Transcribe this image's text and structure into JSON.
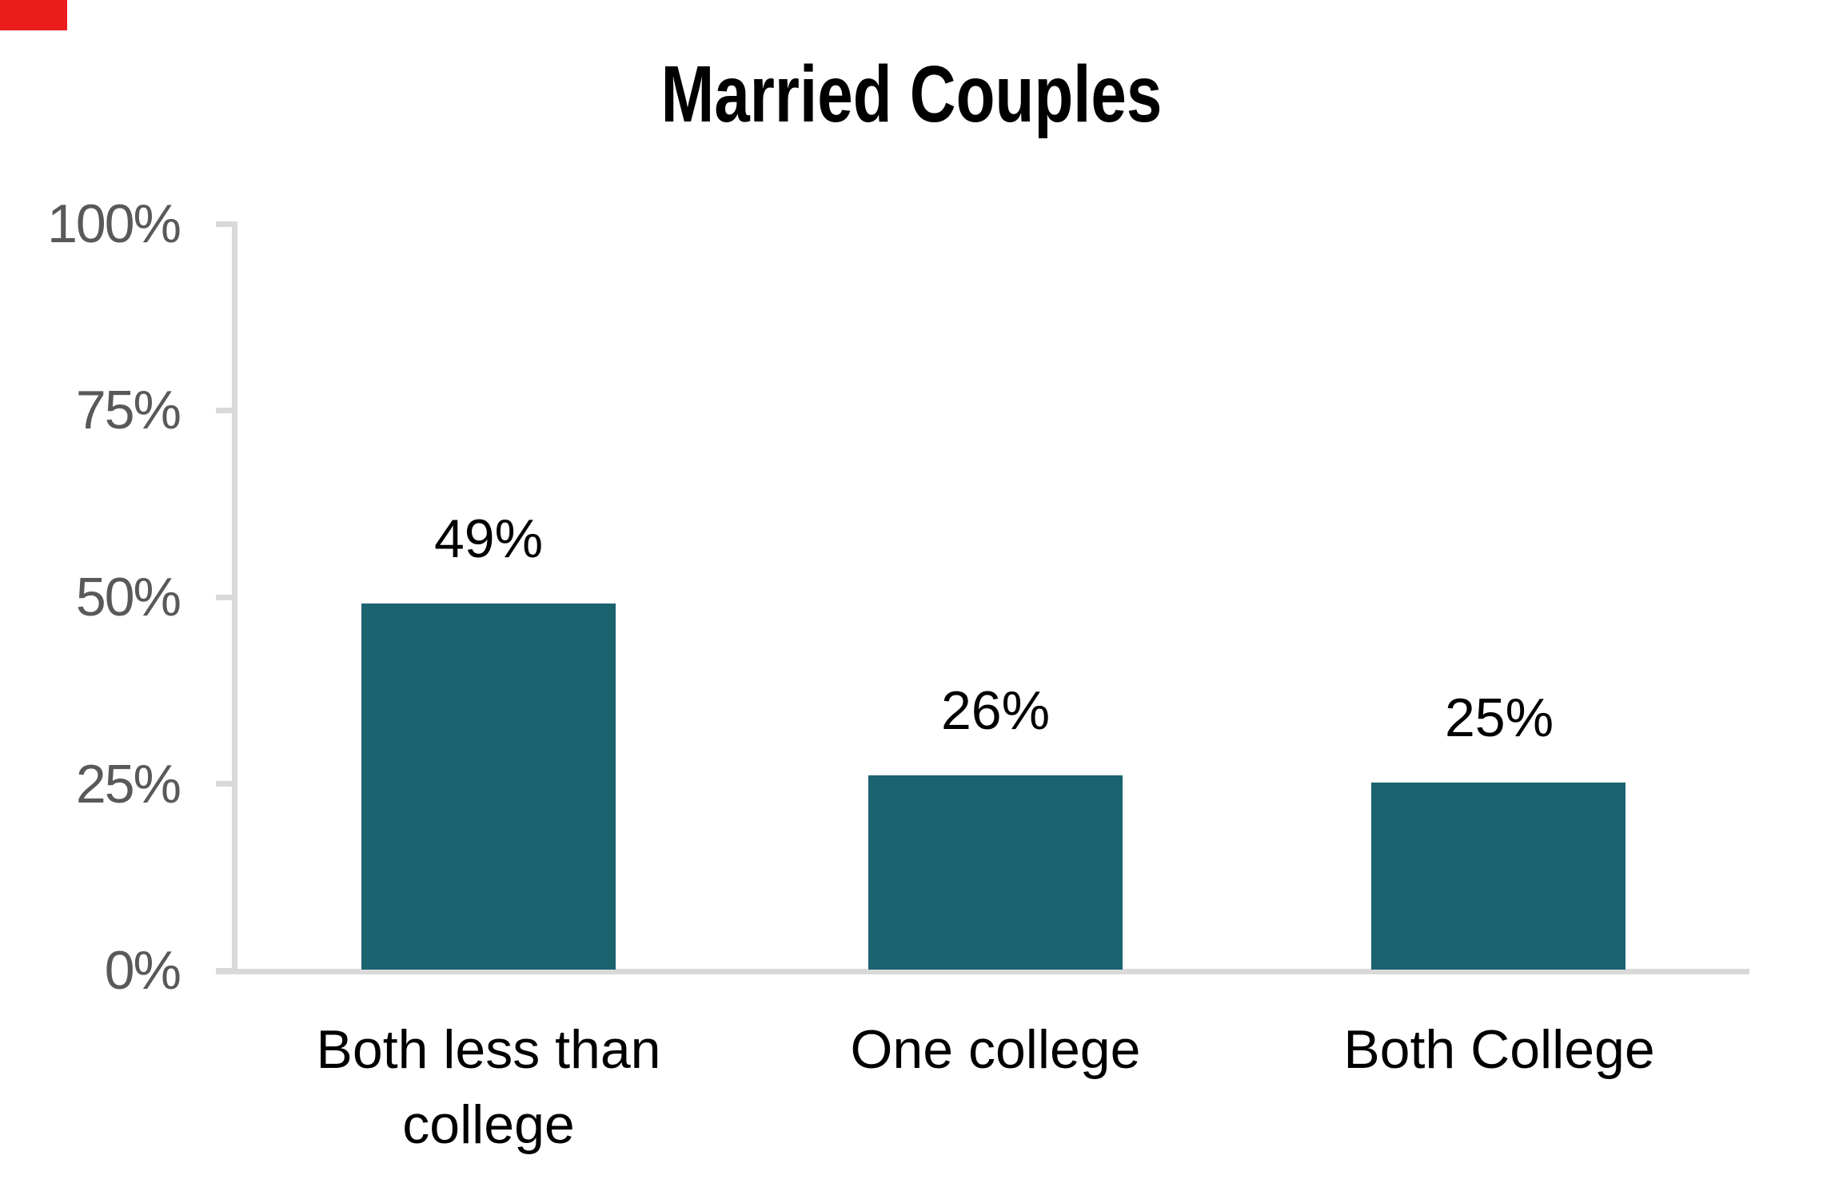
{
  "corner_marker": {
    "color": "#EC1C1C"
  },
  "chart_data": {
    "type": "bar",
    "title": "Married Couples",
    "categories": [
      "Both less than college",
      "One college",
      "Both College"
    ],
    "values": [
      49,
      26,
      25
    ],
    "value_labels": [
      "49%",
      "26%",
      "25%"
    ],
    "y_tick_labels": [
      "100%",
      "75%",
      "50%",
      "25%",
      "0%"
    ],
    "y_tick_values": [
      100,
      75,
      50,
      25,
      0
    ],
    "ylim": [
      0,
      100
    ],
    "xlabel": "",
    "ylabel": "",
    "grid": false,
    "legend": false,
    "data_labels_position": "above-bar",
    "bar_color": "#1C6370",
    "axis_color": "#D9D9D9",
    "tick_label_color": "#595959",
    "text_color": "#000000",
    "background_color": "#FFFFFF"
  }
}
